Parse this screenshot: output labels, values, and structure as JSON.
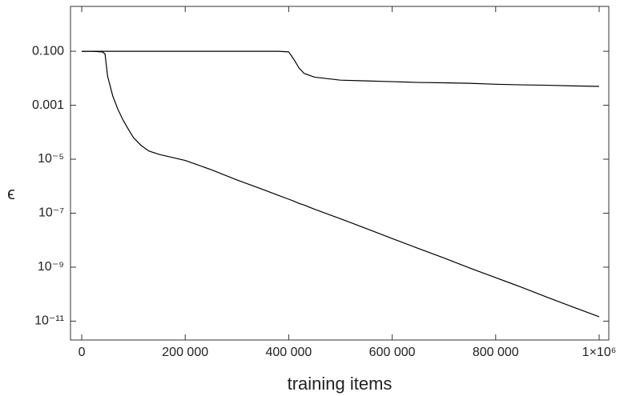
{
  "chart_data": {
    "type": "line",
    "log_y": true,
    "grid": false,
    "x_label": "training items",
    "y_label": "ϵ",
    "x": [
      0,
      20000,
      40000,
      45000,
      50000,
      60000,
      70000,
      80000,
      90000,
      100000,
      115000,
      130000,
      150000,
      200000,
      250000,
      300000,
      350000,
      380000,
      400000,
      410000,
      420000,
      430000,
      450000,
      500000,
      550000,
      600000,
      650000,
      700000,
      750000,
      800000,
      850000,
      900000,
      950000,
      1000000
    ],
    "series": [
      {
        "color": "#000000",
        "values": [
          0.1,
          0.1,
          0.1,
          0.1,
          0.1,
          0.1,
          0.1,
          0.1,
          0.1,
          0.1,
          0.1,
          0.1,
          0.1,
          0.1,
          0.1,
          0.1,
          0.1,
          0.1,
          0.095,
          0.05,
          0.024,
          0.015,
          0.011,
          0.0085,
          0.008,
          0.0075,
          0.007,
          0.0068,
          0.0065,
          0.006,
          0.0057,
          0.0055,
          0.0052,
          0.005
        ]
      },
      {
        "color": "#000000",
        "values": [
          0.1,
          0.1,
          0.095,
          0.08,
          0.012,
          0.0022,
          0.0007,
          0.00028,
          0.00013,
          6.3e-05,
          3.2e-05,
          2e-05,
          1.5e-05,
          9e-06,
          4.1e-06,
          1.7e-06,
          7.6e-07,
          4.6e-07,
          3.3e-07,
          2.8e-07,
          2.3e-07,
          2e-07,
          1.4e-07,
          6.2e-08,
          2.7e-08,
          1.15e-08,
          5e-09,
          2.2e-09,
          9.3e-10,
          4.1e-10,
          1.8e-10,
          7.6e-11,
          3.3e-11,
          1.45e-11
        ]
      }
    ],
    "xlim": [
      -21700,
      1018600
    ],
    "xticks": [
      0,
      {
        "value": 200000,
        "label": "200 000"
      },
      {
        "value": 400000,
        "label": "400 000"
      },
      {
        "value": 600000,
        "label": "600 000"
      },
      {
        "value": 800000,
        "label": "800 000"
      },
      {
        "value": 1000000,
        "label": "1×10⁶"
      }
    ],
    "ylim": [
      2e-12,
      4.6
    ],
    "yticks": [
      {
        "value": 0.1,
        "label": "0.100"
      },
      0.001,
      {
        "value": 1e-05,
        "label": "10⁻⁵"
      },
      {
        "value": 1e-07,
        "label": "10⁻⁷"
      },
      {
        "value": 1e-09,
        "label": "10⁻⁹"
      },
      {
        "value": 1e-11,
        "label": "10⁻¹¹"
      }
    ]
  }
}
